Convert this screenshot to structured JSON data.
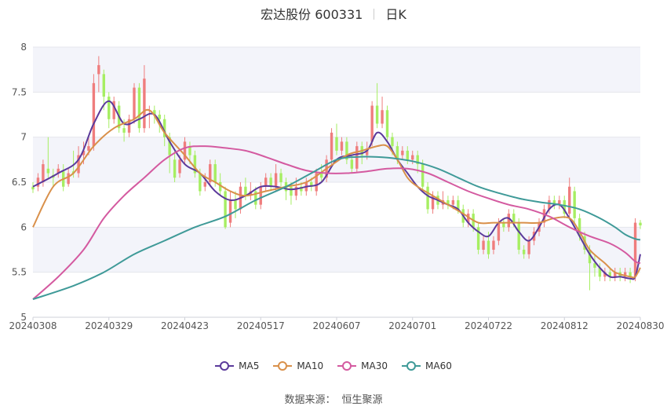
{
  "header": {
    "stock": "宏达股份 600331",
    "period": "日K"
  },
  "legend": {
    "items": [
      "MA5",
      "MA10",
      "MA30",
      "MA60"
    ]
  },
  "source": {
    "label": "数据来源：",
    "name": "恒生聚源"
  },
  "colors": {
    "up": "#ef7d7d",
    "down": "#a6ee62",
    "ma5": "#5b3a9b",
    "ma10": "#d9904a",
    "ma30": "#d45aa0",
    "ma60": "#3f9a98",
    "band": "#f3f4fa",
    "grid": "#e5e6ec"
  },
  "chart_data": {
    "type": "candlestick",
    "y_ticks": [
      "8",
      "7.5",
      "7",
      "6.5",
      "6",
      "5.5",
      "5"
    ],
    "ylim": [
      5,
      8
    ],
    "x_tick_labels": [
      "20240308",
      "20240329",
      "20240423",
      "20240517",
      "20240607",
      "20240701",
      "20240722",
      "20240812",
      "20240830"
    ],
    "n_points": 121,
    "x_tick_indices": [
      0,
      15,
      30,
      45,
      60,
      75,
      90,
      105,
      120
    ],
    "candles": [
      [
        6.45,
        6.42,
        6.5,
        6.38
      ],
      [
        6.45,
        6.55,
        6.6,
        6.4
      ],
      [
        6.5,
        6.7,
        6.75,
        6.45
      ],
      [
        6.65,
        6.6,
        7.0,
        6.55
      ],
      [
        6.58,
        6.55,
        6.65,
        6.45
      ],
      [
        6.6,
        6.65,
        6.7,
        6.55
      ],
      [
        6.62,
        6.45,
        6.7,
        6.4
      ],
      [
        6.48,
        6.6,
        6.65,
        6.45
      ],
      [
        6.62,
        6.6,
        6.85,
        6.55
      ],
      [
        6.6,
        6.8,
        6.9,
        6.55
      ],
      [
        6.8,
        6.85,
        6.95,
        6.7
      ],
      [
        6.85,
        6.9,
        7.0,
        6.8
      ],
      [
        6.9,
        7.6,
        7.7,
        6.85
      ],
      [
        7.7,
        7.8,
        7.9,
        7.5
      ],
      [
        7.7,
        7.45,
        7.75,
        7.3
      ],
      [
        7.45,
        7.2,
        7.5,
        7.1
      ],
      [
        7.2,
        7.4,
        7.45,
        7.15
      ],
      [
        7.35,
        7.1,
        7.4,
        7.05
      ],
      [
        7.1,
        7.05,
        7.2,
        6.95
      ],
      [
        7.05,
        7.2,
        7.25,
        7.0
      ],
      [
        7.2,
        7.55,
        7.6,
        7.15
      ],
      [
        7.55,
        7.1,
        7.6,
        7.05
      ],
      [
        7.1,
        7.65,
        7.8,
        7.05
      ],
      [
        7.3,
        7.3,
        7.35,
        7.1
      ],
      [
        7.3,
        7.25,
        7.35,
        7.15
      ],
      [
        7.25,
        7.2,
        7.3,
        7.05
      ],
      [
        7.2,
        7.0,
        7.25,
        6.9
      ],
      [
        7.0,
        6.8,
        7.05,
        6.6
      ],
      [
        6.75,
        6.55,
        6.85,
        6.5
      ],
      [
        6.6,
        6.75,
        6.8,
        6.55
      ],
      [
        6.75,
        6.95,
        7.0,
        6.7
      ],
      [
        6.9,
        6.8,
        6.95,
        6.7
      ],
      [
        6.8,
        6.6,
        6.85,
        6.55
      ],
      [
        6.6,
        6.4,
        6.65,
        6.35
      ],
      [
        6.45,
        6.5,
        6.6,
        6.4
      ],
      [
        6.5,
        6.7,
        6.75,
        6.45
      ],
      [
        6.7,
        6.5,
        6.75,
        6.45
      ],
      [
        6.5,
        6.4,
        6.6,
        6.35
      ],
      [
        6.4,
        6.0,
        6.45,
        5.98
      ],
      [
        6.05,
        6.3,
        6.4,
        6.0
      ],
      [
        6.3,
        6.2,
        6.4,
        6.1
      ],
      [
        6.2,
        6.45,
        6.5,
        6.15
      ],
      [
        6.45,
        6.35,
        6.55,
        6.3
      ],
      [
        6.35,
        6.4,
        6.5,
        6.3
      ],
      [
        6.4,
        6.25,
        6.45,
        6.2
      ],
      [
        6.25,
        6.45,
        6.5,
        6.2
      ],
      [
        6.45,
        6.55,
        6.6,
        6.4
      ],
      [
        6.55,
        6.45,
        6.6,
        6.4
      ],
      [
        6.45,
        6.6,
        6.7,
        6.4
      ],
      [
        6.6,
        6.5,
        6.65,
        6.45
      ],
      [
        6.5,
        6.4,
        6.55,
        6.3
      ],
      [
        6.45,
        6.35,
        6.5,
        6.25
      ],
      [
        6.35,
        6.45,
        6.55,
        6.3
      ],
      [
        6.45,
        6.4,
        6.5,
        6.35
      ],
      [
        6.4,
        6.5,
        6.55,
        6.35
      ],
      [
        6.5,
        6.45,
        6.55,
        6.4
      ],
      [
        6.4,
        6.6,
        6.65,
        6.35
      ],
      [
        6.6,
        6.55,
        6.7,
        6.5
      ],
      [
        6.55,
        6.75,
        6.8,
        6.5
      ],
      [
        6.75,
        7.05,
        7.1,
        6.7
      ],
      [
        7.0,
        6.85,
        7.15,
        6.8
      ],
      [
        6.85,
        6.95,
        7.0,
        6.8
      ],
      [
        6.95,
        6.75,
        7.0,
        6.7
      ],
      [
        6.75,
        6.65,
        6.8,
        6.6
      ],
      [
        6.65,
        6.9,
        6.95,
        6.6
      ],
      [
        6.9,
        6.8,
        6.95,
        6.7
      ],
      [
        6.8,
        6.85,
        6.95,
        6.75
      ],
      [
        6.95,
        7.35,
        7.4,
        6.9
      ],
      [
        7.35,
        7.15,
        7.6,
        7.1
      ],
      [
        7.15,
        7.3,
        7.45,
        7.1
      ],
      [
        7.3,
        7.0,
        7.35,
        6.95
      ],
      [
        7.0,
        6.9,
        7.05,
        6.8
      ],
      [
        6.9,
        6.75,
        6.95,
        6.7
      ],
      [
        6.8,
        6.85,
        6.9,
        6.75
      ],
      [
        6.85,
        6.75,
        6.9,
        6.7
      ],
      [
        6.75,
        6.8,
        6.85,
        6.7
      ],
      [
        6.8,
        6.7,
        6.85,
        6.6
      ],
      [
        6.7,
        6.45,
        6.75,
        6.4
      ],
      [
        6.45,
        6.2,
        6.5,
        6.15
      ],
      [
        6.2,
        6.35,
        6.4,
        6.15
      ],
      [
        6.35,
        6.25,
        6.4,
        6.2
      ],
      [
        6.25,
        6.3,
        6.4,
        6.2
      ],
      [
        6.3,
        6.25,
        6.35,
        6.2
      ],
      [
        6.25,
        6.3,
        6.35,
        6.2
      ],
      [
        6.3,
        6.2,
        6.35,
        6.15
      ],
      [
        6.2,
        6.05,
        6.25,
        6.0
      ],
      [
        6.05,
        6.15,
        6.2,
        6.0
      ],
      [
        6.15,
        6.0,
        6.2,
        5.95
      ],
      [
        6.0,
        5.75,
        6.05,
        5.7
      ],
      [
        5.75,
        5.85,
        5.9,
        5.7
      ],
      [
        5.85,
        5.7,
        5.95,
        5.65
      ],
      [
        5.75,
        5.85,
        5.9,
        5.7
      ],
      [
        5.85,
        6.05,
        6.1,
        5.8
      ],
      [
        6.05,
        6.0,
        6.1,
        5.95
      ],
      [
        6.0,
        6.15,
        6.2,
        5.95
      ],
      [
        6.15,
        6.05,
        6.2,
        6.0
      ],
      [
        6.05,
        5.75,
        6.1,
        5.7
      ],
      [
        5.75,
        5.7,
        5.8,
        5.65
      ],
      [
        5.7,
        5.85,
        5.9,
        5.65
      ],
      [
        5.85,
        5.95,
        6.0,
        5.8
      ],
      [
        5.95,
        6.05,
        6.1,
        5.9
      ],
      [
        6.05,
        6.2,
        6.25,
        6.0
      ],
      [
        6.2,
        6.3,
        6.35,
        6.15
      ],
      [
        6.3,
        6.25,
        6.35,
        6.2
      ],
      [
        6.25,
        6.3,
        6.35,
        6.2
      ],
      [
        6.3,
        6.15,
        6.35,
        6.1
      ],
      [
        6.15,
        6.45,
        6.55,
        6.1
      ],
      [
        6.4,
        6.1,
        6.45,
        6.05
      ],
      [
        6.1,
        5.9,
        6.15,
        5.85
      ],
      [
        5.9,
        5.75,
        5.95,
        5.7
      ],
      [
        5.75,
        5.6,
        5.8,
        5.3
      ],
      [
        5.6,
        5.55,
        5.7,
        5.45
      ],
      [
        5.55,
        5.45,
        5.6,
        5.4
      ],
      [
        5.45,
        5.5,
        5.55,
        5.4
      ],
      [
        5.5,
        5.45,
        5.55,
        5.4
      ],
      [
        5.45,
        5.5,
        5.55,
        5.4
      ],
      [
        5.5,
        5.45,
        5.55,
        5.4
      ],
      [
        5.45,
        5.5,
        5.55,
        5.4
      ],
      [
        5.5,
        5.45,
        5.55,
        5.38
      ],
      [
        5.45,
        6.05,
        6.1,
        5.4
      ],
      [
        6.05,
        6.02,
        6.08,
        5.98
      ]
    ],
    "series": [
      {
        "name": "MA5",
        "anchors": [
          [
            0,
            6.45
          ],
          [
            5,
            6.6
          ],
          [
            9,
            6.75
          ],
          [
            12,
            7.15
          ],
          [
            15,
            7.4
          ],
          [
            18,
            7.15
          ],
          [
            21,
            7.2
          ],
          [
            24,
            7.25
          ],
          [
            27,
            6.95
          ],
          [
            30,
            6.7
          ],
          [
            33,
            6.6
          ],
          [
            36,
            6.4
          ],
          [
            39,
            6.3
          ],
          [
            42,
            6.35
          ],
          [
            45,
            6.45
          ],
          [
            48,
            6.45
          ],
          [
            51,
            6.42
          ],
          [
            54,
            6.45
          ],
          [
            57,
            6.5
          ],
          [
            60,
            6.75
          ],
          [
            63,
            6.8
          ],
          [
            66,
            6.85
          ],
          [
            68,
            7.05
          ],
          [
            70,
            6.95
          ],
          [
            72,
            6.75
          ],
          [
            74,
            6.6
          ],
          [
            76,
            6.45
          ],
          [
            78,
            6.35
          ],
          [
            80,
            6.3
          ],
          [
            82,
            6.25
          ],
          [
            84,
            6.2
          ],
          [
            86,
            6.05
          ],
          [
            88,
            5.95
          ],
          [
            90,
            5.9
          ],
          [
            92,
            6.05
          ],
          [
            94,
            6.1
          ],
          [
            96,
            5.95
          ],
          [
            98,
            5.85
          ],
          [
            100,
            6.0
          ],
          [
            102,
            6.2
          ],
          [
            104,
            6.25
          ],
          [
            106,
            6.1
          ],
          [
            108,
            5.9
          ],
          [
            110,
            5.7
          ],
          [
            112,
            5.55
          ],
          [
            114,
            5.45
          ],
          [
            116,
            5.45
          ],
          [
            118,
            5.43
          ],
          [
            119,
            5.45
          ],
          [
            120,
            5.7
          ]
        ]
      },
      {
        "name": "MA10",
        "anchors": [
          [
            0,
            6.0
          ],
          [
            4,
            6.45
          ],
          [
            8,
            6.6
          ],
          [
            12,
            6.9
          ],
          [
            16,
            7.1
          ],
          [
            20,
            7.2
          ],
          [
            23,
            7.3
          ],
          [
            26,
            7.05
          ],
          [
            30,
            6.8
          ],
          [
            33,
            6.6
          ],
          [
            36,
            6.5
          ],
          [
            39,
            6.4
          ],
          [
            42,
            6.35
          ],
          [
            46,
            6.4
          ],
          [
            50,
            6.45
          ],
          [
            54,
            6.5
          ],
          [
            58,
            6.65
          ],
          [
            62,
            6.8
          ],
          [
            65,
            6.85
          ],
          [
            68,
            6.9
          ],
          [
            70,
            6.9
          ],
          [
            72,
            6.75
          ],
          [
            74,
            6.55
          ],
          [
            76,
            6.45
          ],
          [
            79,
            6.35
          ],
          [
            82,
            6.25
          ],
          [
            85,
            6.15
          ],
          [
            88,
            6.05
          ],
          [
            91,
            6.05
          ],
          [
            94,
            6.05
          ],
          [
            97,
            6.05
          ],
          [
            100,
            6.05
          ],
          [
            103,
            6.1
          ],
          [
            106,
            6.1
          ],
          [
            108,
            5.95
          ],
          [
            110,
            5.75
          ],
          [
            113,
            5.6
          ],
          [
            115,
            5.5
          ],
          [
            118,
            5.45
          ],
          [
            119,
            5.45
          ],
          [
            120,
            5.55
          ]
        ]
      },
      {
        "name": "MA30",
        "anchors": [
          [
            0,
            5.2
          ],
          [
            5,
            5.45
          ],
          [
            10,
            5.75
          ],
          [
            14,
            6.1
          ],
          [
            18,
            6.35
          ],
          [
            22,
            6.55
          ],
          [
            26,
            6.75
          ],
          [
            30,
            6.88
          ],
          [
            34,
            6.9
          ],
          [
            38,
            6.88
          ],
          [
            42,
            6.85
          ],
          [
            46,
            6.78
          ],
          [
            50,
            6.7
          ],
          [
            54,
            6.63
          ],
          [
            58,
            6.6
          ],
          [
            62,
            6.6
          ],
          [
            66,
            6.62
          ],
          [
            70,
            6.65
          ],
          [
            74,
            6.65
          ],
          [
            78,
            6.6
          ],
          [
            82,
            6.5
          ],
          [
            86,
            6.4
          ],
          [
            90,
            6.32
          ],
          [
            94,
            6.25
          ],
          [
            98,
            6.2
          ],
          [
            102,
            6.12
          ],
          [
            106,
            6.0
          ],
          [
            110,
            5.9
          ],
          [
            114,
            5.82
          ],
          [
            117,
            5.72
          ],
          [
            119,
            5.62
          ],
          [
            120,
            5.6
          ]
        ]
      },
      {
        "name": "MA60",
        "anchors": [
          [
            0,
            5.2
          ],
          [
            8,
            5.35
          ],
          [
            14,
            5.5
          ],
          [
            20,
            5.7
          ],
          [
            26,
            5.85
          ],
          [
            32,
            6.0
          ],
          [
            38,
            6.12
          ],
          [
            44,
            6.3
          ],
          [
            50,
            6.45
          ],
          [
            55,
            6.6
          ],
          [
            60,
            6.75
          ],
          [
            64,
            6.78
          ],
          [
            68,
            6.78
          ],
          [
            72,
            6.76
          ],
          [
            76,
            6.72
          ],
          [
            80,
            6.65
          ],
          [
            84,
            6.55
          ],
          [
            88,
            6.45
          ],
          [
            92,
            6.38
          ],
          [
            96,
            6.32
          ],
          [
            100,
            6.28
          ],
          [
            104,
            6.25
          ],
          [
            108,
            6.2
          ],
          [
            112,
            6.1
          ],
          [
            115,
            6.0
          ],
          [
            117,
            5.92
          ],
          [
            119,
            5.87
          ],
          [
            120,
            5.86
          ]
        ]
      }
    ]
  }
}
